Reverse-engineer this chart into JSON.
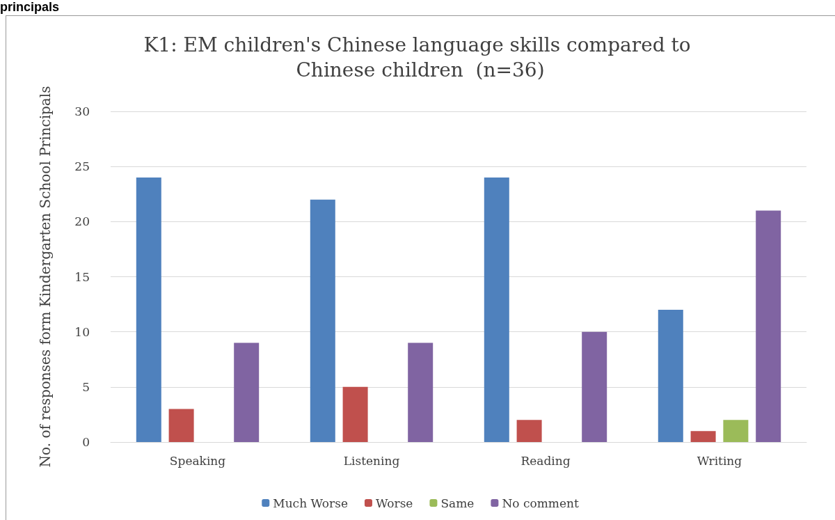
{
  "chart_data": {
    "type": "bar",
    "title": "K1: EM children's Chinese language skills compared to Chinese children  (n=36)",
    "ylabel": "No. of responses form Kindergarten School Principals",
    "annotations": [
      "principals"
    ],
    "categories": [
      "Speaking",
      "Listening",
      "Reading",
      "Writing"
    ],
    "series": [
      {
        "name": "Much Worse",
        "color": "#4f81bd",
        "values": [
          24,
          22,
          24,
          12
        ]
      },
      {
        "name": "Worse",
        "color": "#c0504d",
        "values": [
          3,
          5,
          2,
          1
        ]
      },
      {
        "name": "Same",
        "color": "#9bbb59",
        "values": [
          0,
          0,
          0,
          2
        ]
      },
      {
        "name": "No comment",
        "color": "#8064a2",
        "values": [
          9,
          9,
          10,
          21
        ]
      }
    ],
    "ylim": [
      0,
      30
    ],
    "yticks": [
      0,
      5,
      10,
      15,
      20,
      25,
      30
    ],
    "grid": "y",
    "legend": "bottom"
  }
}
